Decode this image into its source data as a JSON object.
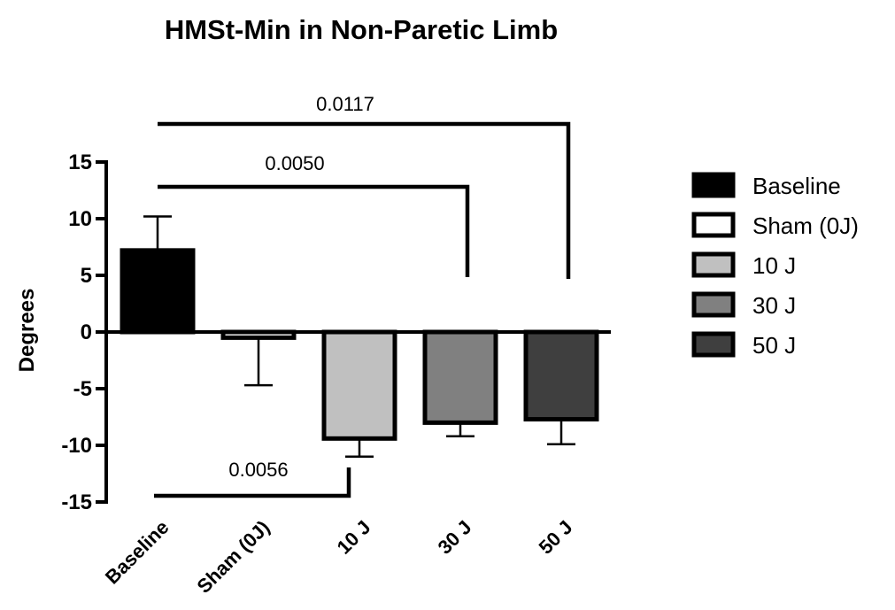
{
  "chart_data": {
    "type": "bar",
    "title": "HMSt-Min in Non-Paretic Limb",
    "ylabel": "Degrees",
    "xlabel": "",
    "ylim": [
      -15,
      15
    ],
    "yticks": [
      15,
      10,
      5,
      0,
      -5,
      -10,
      -15
    ],
    "categories": [
      "Baseline",
      "Sham (0J)",
      "10 J",
      "30 J",
      "50 J"
    ],
    "values": [
      7.2,
      -0.5,
      -9.4,
      -8.0,
      -7.7
    ],
    "errors": [
      3.0,
      4.2,
      1.6,
      1.2,
      2.2
    ],
    "colors": [
      "#000000",
      "#ffffff",
      "#c0c0c0",
      "#808080",
      "#3f3f3f"
    ],
    "legend": {
      "placement": "right",
      "entries": [
        "Baseline",
        "Sham (0J)",
        "10 J",
        "30 J",
        "50 J"
      ]
    },
    "grid": false,
    "annotations": [
      {
        "label": "0.0117",
        "from": "Baseline",
        "to": "50 J"
      },
      {
        "label": "0.0050",
        "from": "Baseline",
        "to": "30 J"
      },
      {
        "label": "0.0056",
        "from": "Baseline",
        "to": "10 J"
      }
    ]
  }
}
